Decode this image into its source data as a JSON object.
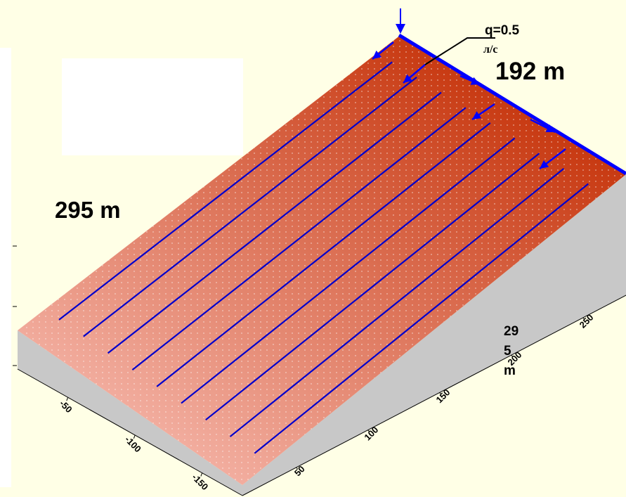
{
  "colors": {
    "background": "#ffffe6",
    "slope_top": "#c83a12",
    "slope_bottom": "#f4b3a6",
    "side": "#c8c8c8",
    "furrow_line": "#0000cc",
    "header_pipe": "#0000ff",
    "white_box": "#ffffff"
  },
  "labels": {
    "width": "192 m",
    "length": "295 m",
    "flow_q": "q=0.5",
    "flow_unit": "л/с",
    "depth": "29 5 m"
  },
  "axis_right": {
    "ticks": [
      "50",
      "100",
      "150",
      "200",
      "250"
    ]
  },
  "axis_left": {
    "ticks": [
      "-50",
      "-100",
      "-150"
    ]
  },
  "furrows": {
    "count": 9
  },
  "icons": [
    "inflow-arrow-icon",
    "flow-direction-arrow-icon"
  ]
}
